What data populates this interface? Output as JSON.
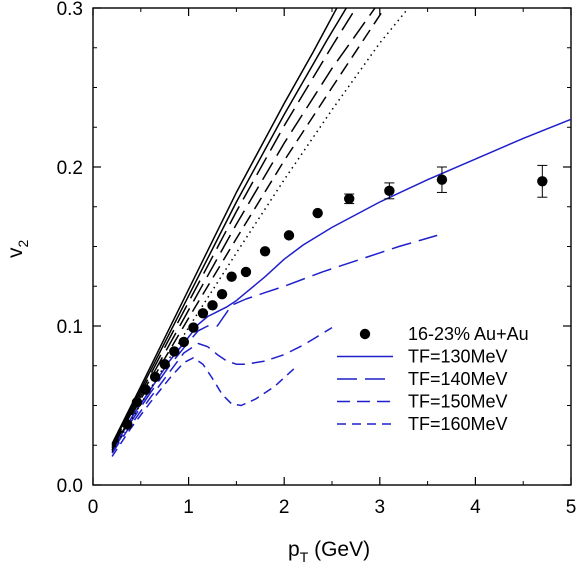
{
  "chart_data": {
    "type": "line",
    "title": "",
    "xlabel": {
      "main": "p",
      "sub": "T",
      "rest": " (GeV)"
    },
    "ylabel": {
      "main": "v",
      "sub": "2"
    },
    "xlim": [
      0,
      5
    ],
    "ylim": [
      0,
      0.3
    ],
    "xticks": [
      0,
      1,
      2,
      3,
      4,
      5
    ],
    "yticks": [
      0.0,
      0.1,
      0.2,
      0.3
    ],
    "xtick_labels": [
      "0",
      "1",
      "2",
      "3",
      "4",
      "5"
    ],
    "ytick_labels": [
      "0.0",
      "0.1",
      "0.2",
      "0.3"
    ],
    "grid": false,
    "legend_position": "bottom-right",
    "data_series": {
      "name": "16-23% Au+Au",
      "marker": "filled-circle",
      "color": "#000000",
      "points": [
        {
          "x": 0.36,
          "y": 0.038,
          "err": 0
        },
        {
          "x": 0.46,
          "y": 0.052,
          "err": 0
        },
        {
          "x": 0.55,
          "y": 0.06,
          "err": 0
        },
        {
          "x": 0.65,
          "y": 0.068,
          "err": 0
        },
        {
          "x": 0.75,
          "y": 0.076,
          "err": 0
        },
        {
          "x": 0.85,
          "y": 0.084,
          "err": 0
        },
        {
          "x": 0.95,
          "y": 0.09,
          "err": 0
        },
        {
          "x": 1.05,
          "y": 0.099,
          "err": 0
        },
        {
          "x": 1.15,
          "y": 0.108,
          "err": 0
        },
        {
          "x": 1.25,
          "y": 0.113,
          "err": 0
        },
        {
          "x": 1.35,
          "y": 0.12,
          "err": 0
        },
        {
          "x": 1.45,
          "y": 0.131,
          "err": 0
        },
        {
          "x": 1.6,
          "y": 0.134,
          "err": 0
        },
        {
          "x": 1.8,
          "y": 0.147,
          "err": 0
        },
        {
          "x": 2.05,
          "y": 0.157,
          "err": 0
        },
        {
          "x": 2.35,
          "y": 0.171,
          "err": 0
        },
        {
          "x": 2.68,
          "y": 0.18,
          "err": 0.003
        },
        {
          "x": 3.1,
          "y": 0.185,
          "err": 0.005
        },
        {
          "x": 3.65,
          "y": 0.192,
          "err": 0.008
        },
        {
          "x": 4.7,
          "y": 0.191,
          "err": 0.01
        }
      ]
    },
    "series": [
      {
        "name": "TF=130MeV",
        "color": "#1f1fcc",
        "dash": "solid",
        "points": [
          [
            0.2,
            0.022
          ],
          [
            0.4,
            0.042
          ],
          [
            0.6,
            0.06
          ],
          [
            0.8,
            0.078
          ],
          [
            1.0,
            0.093
          ],
          [
            1.1,
            0.101
          ],
          [
            1.2,
            0.106
          ],
          [
            1.3,
            0.109
          ],
          [
            1.4,
            0.112
          ],
          [
            1.5,
            0.116
          ],
          [
            1.6,
            0.121
          ],
          [
            1.8,
            0.131
          ],
          [
            2.0,
            0.142
          ],
          [
            2.2,
            0.151
          ],
          [
            2.5,
            0.162
          ],
          [
            3.0,
            0.178
          ],
          [
            3.5,
            0.192
          ],
          [
            4.0,
            0.205
          ],
          [
            4.5,
            0.218
          ],
          [
            5.0,
            0.23
          ]
        ]
      },
      {
        "name": "TF=140MeV",
        "color": "#1f1fcc",
        "dash": "long",
        "points": [
          [
            0.2,
            0.021
          ],
          [
            0.4,
            0.04
          ],
          [
            0.6,
            0.058
          ],
          [
            0.8,
            0.075
          ],
          [
            1.0,
            0.09
          ],
          [
            1.1,
            0.097
          ],
          [
            1.2,
            0.1
          ],
          [
            1.3,
            0.1
          ],
          [
            1.45,
            0.113
          ],
          [
            1.6,
            0.117
          ],
          [
            1.8,
            0.121
          ],
          [
            2.0,
            0.125
          ],
          [
            2.4,
            0.134
          ],
          [
            2.8,
            0.142
          ],
          [
            3.2,
            0.15
          ],
          [
            3.6,
            0.157
          ]
        ]
      },
      {
        "name": "TF=150MeV",
        "color": "#1f1fcc",
        "dash": "medium",
        "points": [
          [
            0.2,
            0.02
          ],
          [
            0.4,
            0.038
          ],
          [
            0.6,
            0.055
          ],
          [
            0.8,
            0.071
          ],
          [
            0.95,
            0.083
          ],
          [
            1.1,
            0.089
          ],
          [
            1.2,
            0.087
          ],
          [
            1.3,
            0.082
          ],
          [
            1.4,
            0.078
          ],
          [
            1.5,
            0.076
          ],
          [
            1.6,
            0.076
          ],
          [
            1.8,
            0.078
          ],
          [
            2.0,
            0.082
          ],
          [
            2.2,
            0.088
          ],
          [
            2.5,
            0.099
          ],
          [
            2.5,
            0.099
          ]
        ]
      },
      {
        "name": "TF=160MeV",
        "color": "#1f1fcc",
        "dash": "short",
        "points": [
          [
            0.2,
            0.018
          ],
          [
            0.4,
            0.036
          ],
          [
            0.6,
            0.052
          ],
          [
            0.8,
            0.067
          ],
          [
            0.95,
            0.077
          ],
          [
            1.05,
            0.08
          ],
          [
            1.15,
            0.076
          ],
          [
            1.25,
            0.067
          ],
          [
            1.35,
            0.057
          ],
          [
            1.45,
            0.051
          ],
          [
            1.55,
            0.05
          ],
          [
            1.7,
            0.054
          ],
          [
            1.9,
            0.062
          ],
          [
            2.1,
            0.073
          ]
        ]
      },
      {
        "color": "#000000",
        "dash": "solid",
        "points": [
          [
            0.2,
            0.026
          ],
          [
            0.5,
            0.062
          ],
          [
            1.0,
            0.123
          ],
          [
            1.5,
            0.184
          ],
          [
            2.0,
            0.24
          ],
          [
            2.3,
            0.272
          ],
          [
            2.55,
            0.3
          ]
        ]
      },
      {
        "color": "#000000",
        "dash": "solid",
        "points": [
          [
            0.2,
            0.025
          ],
          [
            0.5,
            0.06
          ],
          [
            1.0,
            0.119
          ],
          [
            1.5,
            0.178
          ],
          [
            2.0,
            0.233
          ],
          [
            2.45,
            0.28
          ],
          [
            2.65,
            0.3
          ]
        ]
      },
      {
        "color": "#000000",
        "dash": "long",
        "points": [
          [
            0.2,
            0.024
          ],
          [
            0.5,
            0.058
          ],
          [
            1.0,
            0.115
          ],
          [
            1.5,
            0.172
          ],
          [
            2.0,
            0.226
          ],
          [
            2.5,
            0.276
          ],
          [
            2.75,
            0.3
          ]
        ]
      },
      {
        "color": "#000000",
        "dash": "long",
        "points": [
          [
            0.2,
            0.023
          ],
          [
            0.5,
            0.056
          ],
          [
            1.0,
            0.11
          ],
          [
            1.5,
            0.164
          ],
          [
            2.0,
            0.215
          ],
          [
            2.5,
            0.262
          ],
          [
            2.95,
            0.3
          ]
        ]
      },
      {
        "color": "#000000",
        "dash": "medium",
        "points": [
          [
            0.2,
            0.022
          ],
          [
            0.5,
            0.054
          ],
          [
            1.0,
            0.105
          ],
          [
            1.5,
            0.155
          ],
          [
            2.0,
            0.204
          ],
          [
            2.5,
            0.25
          ],
          [
            3.05,
            0.3
          ]
        ]
      },
      {
        "color": "#000000",
        "dash": "dotted",
        "points": [
          [
            0.2,
            0.021
          ],
          [
            0.5,
            0.051
          ],
          [
            1.0,
            0.099
          ],
          [
            1.5,
            0.146
          ],
          [
            2.0,
            0.192
          ],
          [
            2.5,
            0.236
          ],
          [
            3.0,
            0.278
          ],
          [
            3.3,
            0.3
          ]
        ]
      }
    ]
  }
}
